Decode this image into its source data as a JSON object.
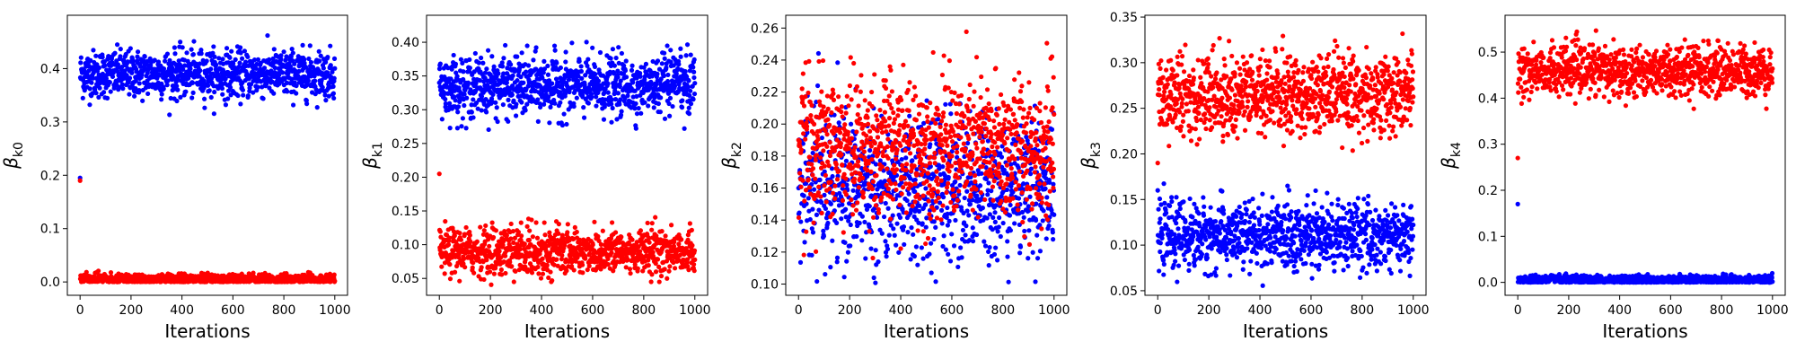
{
  "chart_data": [
    {
      "type": "scatter",
      "xlabel": "Iterations",
      "ylabel": {
        "symbol": "β",
        "subscript": "k0"
      },
      "xlim": [
        -50,
        1050
      ],
      "ylim": [
        -0.025,
        0.5
      ],
      "xticks": [
        0,
        200,
        400,
        600,
        800,
        1000
      ],
      "yticks": [
        "0.0",
        "0.1",
        "0.2",
        "0.3",
        "0.4"
      ],
      "ytick_values": [
        0.0,
        0.1,
        0.2,
        0.3,
        0.4
      ],
      "iterations": [
        0,
        1000
      ],
      "series": [
        {
          "color": "#0000ff",
          "start": 0.195,
          "mean": 0.39,
          "spread": 0.022,
          "min": 0.31,
          "max": 0.475
        },
        {
          "color": "#ff0000",
          "start": 0.19,
          "mean": 0.005,
          "spread": 0.005,
          "min": 0.0,
          "max": 0.035
        }
      ],
      "grid": false
    },
    {
      "type": "scatter",
      "xlabel": "Iterations",
      "ylabel": {
        "symbol": "β",
        "subscript": "k1"
      },
      "xlim": [
        -50,
        1050
      ],
      "ylim": [
        0.025,
        0.44
      ],
      "xticks": [
        0,
        200,
        400,
        600,
        800,
        1000
      ],
      "yticks": [
        "0.05",
        "0.10",
        "0.15",
        "0.20",
        "0.25",
        "0.30",
        "0.35",
        "0.40"
      ],
      "ytick_values": [
        0.05,
        0.1,
        0.15,
        0.2,
        0.25,
        0.3,
        0.35,
        0.4
      ],
      "iterations": [
        0,
        1000
      ],
      "series": [
        {
          "color": "#0000ff",
          "start": 0.34,
          "mean": 0.335,
          "spread": 0.022,
          "min": 0.27,
          "max": 0.425
        },
        {
          "color": "#ff0000",
          "start": 0.205,
          "mean": 0.09,
          "spread": 0.017,
          "min": 0.04,
          "max": 0.155
        }
      ],
      "grid": false
    },
    {
      "type": "scatter",
      "xlabel": "Iterations",
      "ylabel": {
        "symbol": "β",
        "subscript": "k2"
      },
      "xlim": [
        -50,
        1050
      ],
      "ylim": [
        0.093,
        0.268
      ],
      "xticks": [
        0,
        200,
        400,
        600,
        800,
        1000
      ],
      "yticks": [
        "0.10",
        "0.12",
        "0.14",
        "0.16",
        "0.18",
        "0.20",
        "0.22",
        "0.24",
        "0.26"
      ],
      "ytick_values": [
        0.1,
        0.12,
        0.14,
        0.16,
        0.18,
        0.2,
        0.22,
        0.24,
        0.26
      ],
      "iterations": [
        0,
        1000
      ],
      "series": [
        {
          "color": "#0000ff",
          "start": 0.16,
          "mean": 0.16,
          "spread": 0.022,
          "min": 0.1,
          "max": 0.255
        },
        {
          "color": "#ff0000",
          "start": 0.19,
          "mean": 0.185,
          "spread": 0.022,
          "min": 0.1,
          "max": 0.262
        }
      ],
      "grid": false
    },
    {
      "type": "scatter",
      "xlabel": "Iterations",
      "ylabel": {
        "symbol": "β",
        "subscript": "k3"
      },
      "xlim": [
        -50,
        1050
      ],
      "ylim": [
        0.045,
        0.352
      ],
      "xticks": [
        0,
        200,
        400,
        600,
        800,
        1000
      ],
      "yticks": [
        "0.05",
        "0.10",
        "0.15",
        "0.20",
        "0.25",
        "0.30",
        "0.35"
      ],
      "ytick_values": [
        0.05,
        0.1,
        0.15,
        0.2,
        0.25,
        0.3,
        0.35
      ],
      "iterations": [
        0,
        1000
      ],
      "series": [
        {
          "color": "#0000ff",
          "start": 0.16,
          "mean": 0.11,
          "spread": 0.018,
          "min": 0.055,
          "max": 0.168
        },
        {
          "color": "#ff0000",
          "start": 0.19,
          "mean": 0.265,
          "spread": 0.022,
          "min": 0.2,
          "max": 0.34
        }
      ],
      "grid": false
    },
    {
      "type": "scatter",
      "xlabel": "Iterations",
      "ylabel": {
        "symbol": "β",
        "subscript": "k4"
      },
      "xlim": [
        -50,
        1050
      ],
      "ylim": [
        -0.028,
        0.58
      ],
      "xticks": [
        0,
        200,
        400,
        600,
        800,
        1000
      ],
      "yticks": [
        "0.0",
        "0.1",
        "0.2",
        "0.3",
        "0.4",
        "0.5"
      ],
      "ytick_values": [
        0.0,
        0.1,
        0.2,
        0.3,
        0.4,
        0.5
      ],
      "iterations": [
        0,
        1000
      ],
      "series": [
        {
          "color": "#0000ff",
          "start": 0.17,
          "mean": 0.005,
          "spread": 0.005,
          "min": 0.0,
          "max": 0.03
        },
        {
          "color": "#ff0000",
          "start": 0.27,
          "mean": 0.46,
          "spread": 0.027,
          "min": 0.375,
          "max": 0.55
        }
      ],
      "grid": false
    }
  ]
}
